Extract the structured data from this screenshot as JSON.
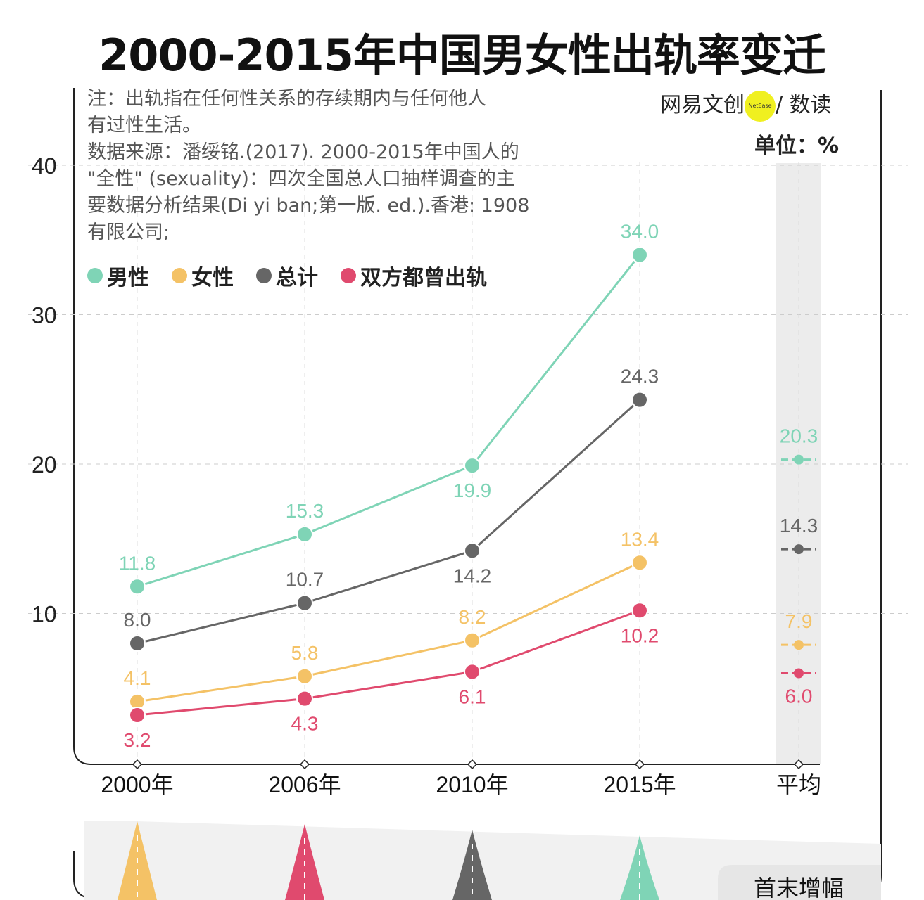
{
  "title": "2000-2015年中国男女性出轨率变迁",
  "note": [
    "注：出轨指在任何性关系的存续期内与任何他人",
    "有过性生活。",
    "数据来源：潘绥铭.(2017). 2000-2015年中国人的",
    "\"全性\" (sexuality)：四次全国总人口抽样调查的主",
    "要数据分析结果(Di yi ban;第一版. ed.).香港: 1908",
    "有限公司;"
  ],
  "brand": {
    "left": "网易文创",
    "logo": "NetEase",
    "right": "/ 数读"
  },
  "unit": "单位：%",
  "bottom_label": "首末增幅",
  "chart_data": {
    "type": "line",
    "categories": [
      "2000年",
      "2006年",
      "2010年",
      "2015年"
    ],
    "average_label": "平均",
    "ylim": [
      0,
      40
    ],
    "yticks": [
      10,
      20,
      30,
      40
    ],
    "grid": true,
    "legend_placement": "top-left",
    "series": [
      {
        "name": "男性",
        "color": "#7fd4b6",
        "values": [
          11.8,
          15.3,
          19.9,
          34.0
        ],
        "average": 20.3,
        "label_pos": [
          "above",
          "above",
          "below",
          "above"
        ]
      },
      {
        "name": "女性",
        "color": "#f4c266",
        "values": [
          4.1,
          5.8,
          8.2,
          13.4
        ],
        "average": 7.9,
        "label_pos": [
          "above",
          "above",
          "above",
          "above"
        ]
      },
      {
        "name": "总计",
        "color": "#666666",
        "values": [
          8.0,
          10.7,
          14.2,
          24.3
        ],
        "average": 14.3,
        "label_pos": [
          "above",
          "above",
          "below",
          "above"
        ]
      },
      {
        "name": "双方都曾出轨",
        "color": "#e04a6e",
        "values": [
          3.2,
          4.3,
          6.1,
          10.2
        ],
        "average": 6.0,
        "label_pos": [
          "below",
          "below",
          "below",
          "below"
        ]
      }
    ],
    "bottom_spike_colors": [
      "#f4c266",
      "#e04a6e",
      "#666666",
      "#7fd4b6"
    ]
  }
}
